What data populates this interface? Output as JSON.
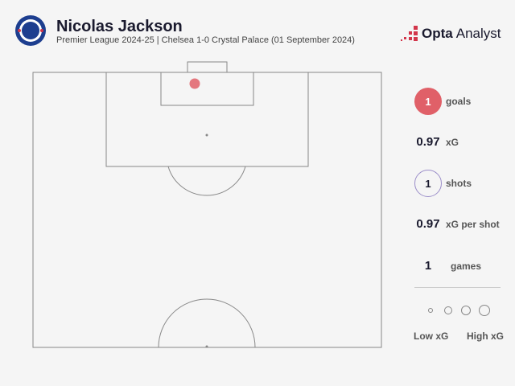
{
  "header": {
    "title": "Nicolas Jackson",
    "subtitle": "Premier League 2024-25 | Chelsea 1-0 Crystal Palace (01 September 2024)",
    "brand_bold": "Opta",
    "brand_light": "Analyst",
    "club_logo": "chelsea-crest"
  },
  "stats": [
    {
      "value": "1",
      "label": "goals"
    },
    {
      "value": "0.97",
      "label": "xG"
    },
    {
      "value": "1",
      "label": "shots"
    },
    {
      "value": "0.97",
      "label": "xG per shot"
    },
    {
      "value": "1",
      "label": "games"
    }
  ],
  "legend": {
    "low": "Low xG",
    "high": "High xG"
  },
  "shots": [
    {
      "xg": 0.97,
      "outcome": "goal"
    }
  ],
  "colors": {
    "goal": "#e06068",
    "shot_ring": "#9b8ec9",
    "pitch_line": "#888888"
  }
}
